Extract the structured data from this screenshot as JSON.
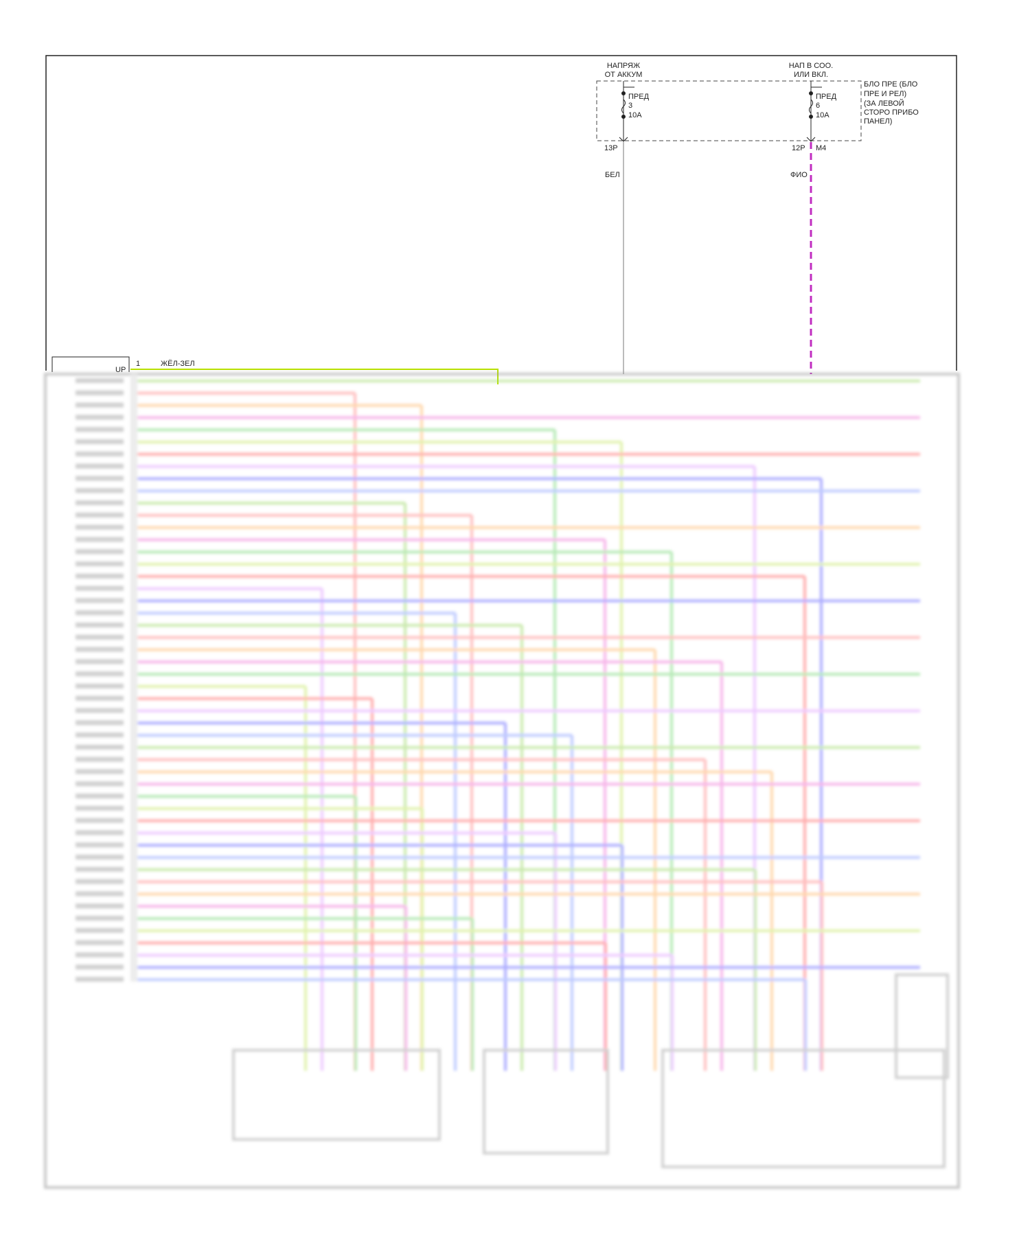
{
  "fuse_block": {
    "supply_battery": [
      "НАПРЯЖ",
      "ОТ АККУМ"
    ],
    "supply_ignition": [
      "НАП В СОО.",
      "ИЛИ ВКЛ."
    ],
    "label": [
      "БЛО ПРЕ (БЛО",
      "ПРЕ И РЕЛ)",
      "(ЗА ЛЕВОЙ",
      "СТОРО ПРИБО",
      "ПАНЕЛ)"
    ],
    "fuses": [
      {
        "name": "ПРЕД",
        "number": "3",
        "rating": "10A",
        "pin": "13P",
        "wire": "БЕЛ"
      },
      {
        "name": "ПРЕД",
        "number": "6",
        "rating": "10A",
        "pin": "12P",
        "connector": "M4",
        "wire": "ФИО"
      }
    ]
  },
  "connector": {
    "orientation": "UP",
    "pin": "1",
    "wire": "ЖЁЛ-ЗЕЛ"
  }
}
